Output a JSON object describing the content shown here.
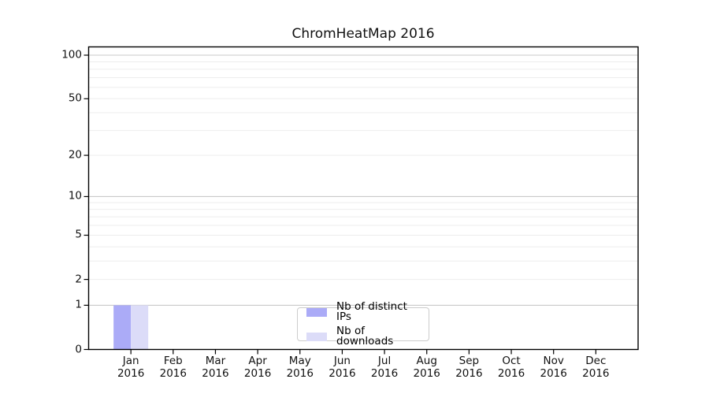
{
  "figure": {
    "background": "#ffffff"
  },
  "chart_data": {
    "type": "bar",
    "title": "ChromHeatMap 2016",
    "categories": [
      "Jan 2016",
      "Feb 2016",
      "Mar 2016",
      "Apr 2016",
      "May 2016",
      "Jun 2016",
      "Jul 2016",
      "Aug 2016",
      "Sep 2016",
      "Oct 2016",
      "Nov 2016",
      "Dec 2016"
    ],
    "series": [
      {
        "name": "Nb of distinct IPs",
        "color": "#ABABF7",
        "values": [
          1,
          0,
          0,
          0,
          0,
          0,
          0,
          0,
          0,
          0,
          0,
          0
        ]
      },
      {
        "name": "Nb of downloads",
        "color": "#DCDCF8",
        "values": [
          1,
          0,
          0,
          0,
          0,
          0,
          0,
          0,
          0,
          0,
          0,
          0
        ]
      }
    ],
    "xlabel": "",
    "ylabel": "",
    "yticks": [
      0,
      1,
      2,
      5,
      10,
      20,
      50,
      100
    ],
    "y_major_gridlines": [
      1,
      10,
      100
    ],
    "y_minor_gridlines": [
      2,
      3,
      4,
      5,
      6,
      7,
      8,
      9,
      20,
      30,
      40,
      50,
      60,
      70,
      80,
      90
    ],
    "scale": "log1p",
    "ylim": [
      0,
      114
    ],
    "grid": "on",
    "legend_position": "bottom-center",
    "colors": {
      "major_grid": "#c9c9c9",
      "minor_grid": "#ededed",
      "axis": "#000000",
      "text": "#111111"
    }
  }
}
